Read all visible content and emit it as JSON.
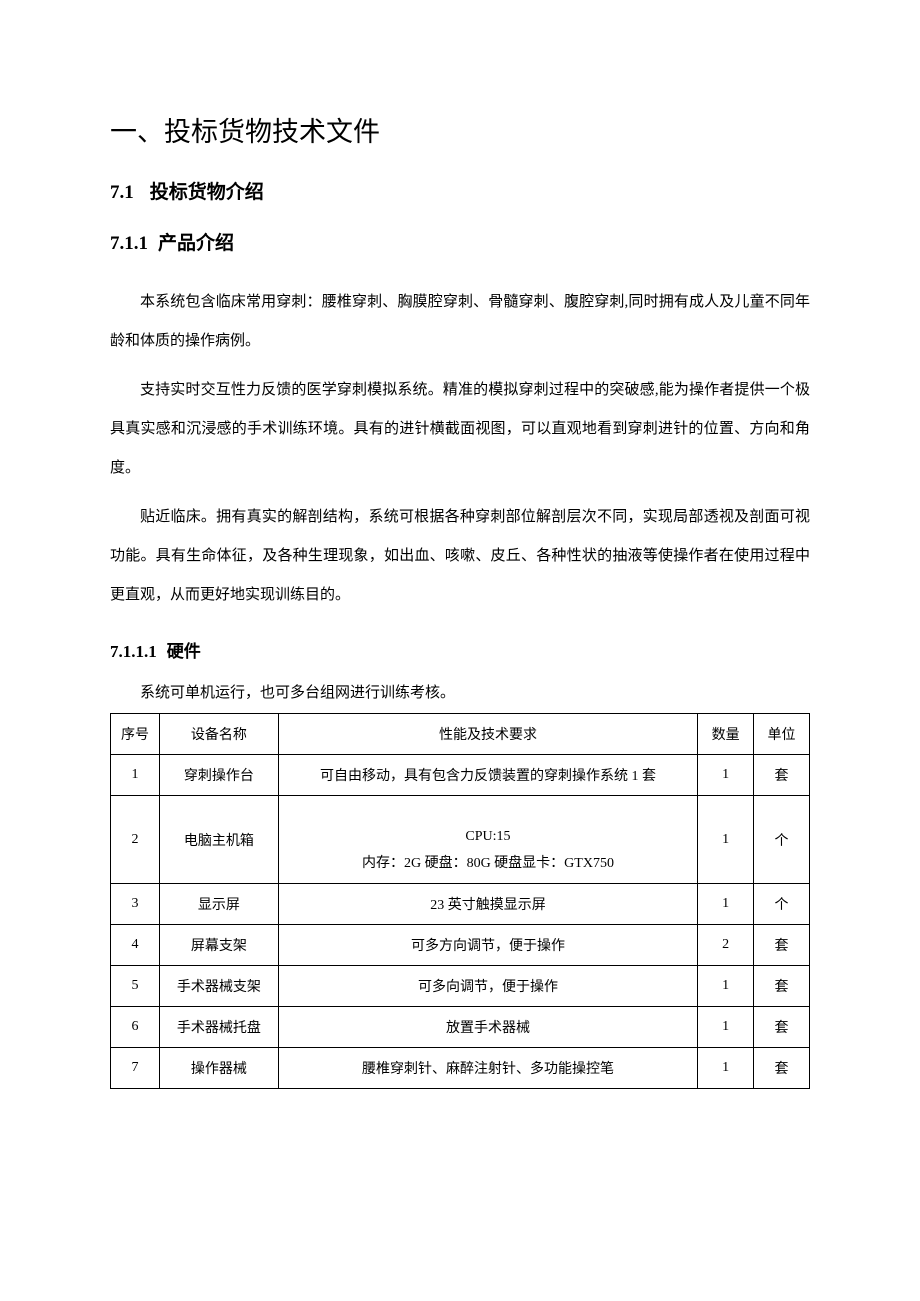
{
  "headings": {
    "h1": "一、投标货物技术文件",
    "h2_num": "7.1",
    "h2_text": "投标货物介绍",
    "h3_num": "7.1.1",
    "h3_text": "产品介绍",
    "h4_num": "7.1.1.1",
    "h4_text": "硬件"
  },
  "paragraphs": {
    "p1": "本系统包含临床常用穿刺：腰椎穿刺、胸膜腔穿刺、骨髓穿刺、腹腔穿刺,同时拥有成人及儿童不同年龄和体质的操作病例。",
    "p2": "支持实时交互性力反馈的医学穿刺模拟系统。精准的模拟穿刺过程中的突破感,能为操作者提供一个极具真实感和沉浸感的手术训练环境。具有的进针横截面视图，可以直观地看到穿刺进针的位置、方向和角度。",
    "p3": "贴近临床。拥有真实的解剖结构，系统可根据各种穿刺部位解剖层次不同，实现局部透视及剖面可视功能。具有生命体征，及各种生理现象，如出血、咳嗽、皮丘、各种性状的抽液等使操作者在使用过程中更直观，从而更好地实现训练目的。",
    "p4": "系统可单机运行，也可多台组网进行训练考核。"
  },
  "table": {
    "headers": {
      "idx": "序号",
      "name": "设备名称",
      "req": "性能及技术要求",
      "qty": "数量",
      "unit": "单位"
    },
    "rows": [
      {
        "idx": "1",
        "name": "穿刺操作台",
        "req": "可自由移动，具有包含力反馈装置的穿刺操作系统 1 套",
        "qty": "1",
        "unit": "套"
      },
      {
        "idx": "2",
        "name": "电脑主机箱",
        "req_l1": "CPU:15",
        "req_l2": "内存：2G 硬盘：80G 硬盘显卡：GTX750",
        "qty": "1",
        "unit": "个"
      },
      {
        "idx": "3",
        "name": "显示屏",
        "req": "23 英寸触摸显示屏",
        "qty": "1",
        "unit": "个"
      },
      {
        "idx": "4",
        "name": "屏幕支架",
        "req": "可多方向调节，便于操作",
        "qty": "2",
        "unit": "套"
      },
      {
        "idx": "5",
        "name": "手术器械支架",
        "req": "可多向调节，便于操作",
        "qty": "1",
        "unit": "套"
      },
      {
        "idx": "6",
        "name": "手术器械托盘",
        "req": "放置手术器械",
        "qty": "1",
        "unit": "套"
      },
      {
        "idx": "7",
        "name": "操作器械",
        "req": "腰椎穿刺针、麻醉注射针、多功能操控笔",
        "qty": "1",
        "unit": "套"
      }
    ]
  }
}
